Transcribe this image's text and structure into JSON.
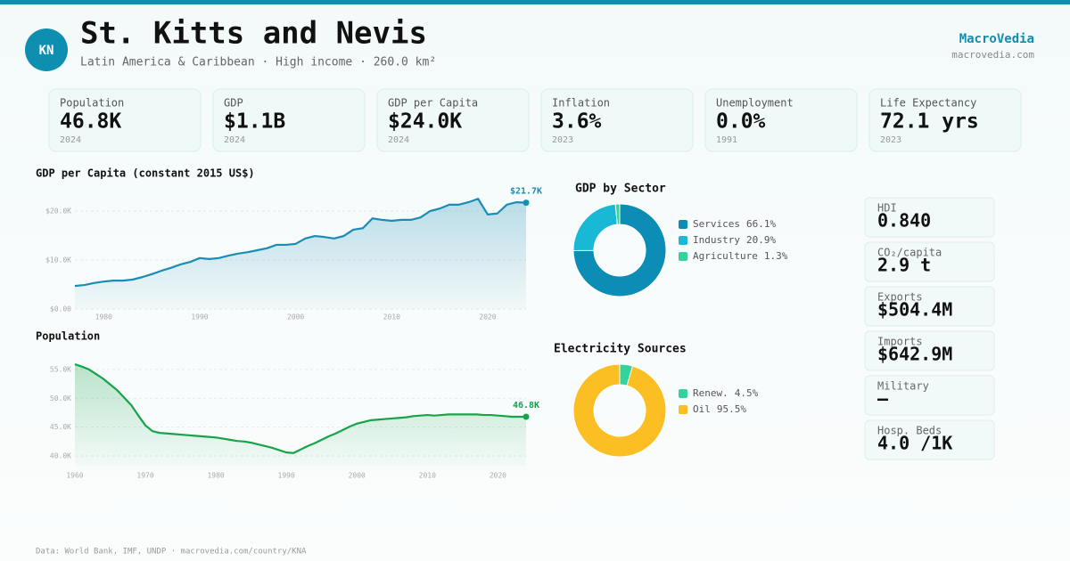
{
  "header": {
    "badge": "KN",
    "title": "St. Kitts and Nevis",
    "subtitle": "Latin America & Caribbean · High income · 260.0 km²",
    "brand": "MacroVedia",
    "site": "macrovedia.com"
  },
  "stats": [
    {
      "label": "Population",
      "value": "46.8K",
      "year": "2024"
    },
    {
      "label": "GDP",
      "value": "$1.1B",
      "year": "2024"
    },
    {
      "label": "GDP per Capita",
      "value": "$24.0K",
      "year": "2024"
    },
    {
      "label": "Inflation",
      "value": "3.6%",
      "year": "2023"
    },
    {
      "label": "Unemployment",
      "value": "0.0%",
      "year": "1991"
    },
    {
      "label": "Life Expectancy",
      "value": "72.1 yrs",
      "year": "2023"
    }
  ],
  "chart_data": [
    {
      "type": "line",
      "title": "GDP per Capita (constant 2015 US$)",
      "color": "#1a8db3",
      "x": [
        1977,
        1978,
        1979,
        1980,
        1981,
        1982,
        1983,
        1984,
        1985,
        1986,
        1987,
        1988,
        1989,
        1990,
        1991,
        1992,
        1993,
        1994,
        1995,
        1996,
        1997,
        1998,
        1999,
        2000,
        2001,
        2002,
        2003,
        2004,
        2005,
        2006,
        2007,
        2008,
        2009,
        2010,
        2011,
        2012,
        2013,
        2014,
        2015,
        2016,
        2017,
        2018,
        2019,
        2020,
        2021,
        2022,
        2023,
        2024
      ],
      "values": [
        4700,
        4900,
        5300,
        5600,
        5800,
        5800,
        6000,
        6500,
        7100,
        7800,
        8400,
        9100,
        9600,
        10400,
        10200,
        10400,
        10900,
        11300,
        11600,
        12000,
        12400,
        13100,
        13100,
        13300,
        14400,
        14900,
        14700,
        14400,
        14900,
        16200,
        16500,
        18500,
        18200,
        18000,
        18200,
        18200,
        18700,
        20000,
        20500,
        21300,
        21300,
        21800,
        22500,
        19300,
        19500,
        21300,
        21800,
        21700
      ],
      "value_labels": [
        null,
        null,
        null,
        null,
        null,
        null,
        null,
        null,
        null,
        null,
        null,
        null,
        null,
        null,
        null,
        null,
        null,
        null,
        null,
        null,
        null,
        null,
        null,
        null,
        null,
        null,
        null,
        null,
        null,
        null,
        null,
        null,
        null,
        null,
        null,
        null,
        null,
        null,
        null,
        null,
        null,
        null,
        null,
        null,
        null,
        null,
        null,
        "$21.7K"
      ],
      "xlim": [
        1977,
        2024
      ],
      "xticks": [
        1980,
        1990,
        2000,
        2010,
        2020
      ],
      "ylim": [
        0,
        25000
      ],
      "yticks": [
        {
          "value": 0,
          "label": "$0.00"
        },
        {
          "value": 10000,
          "label": "$10.0K"
        },
        {
          "value": 20000,
          "label": "$20.0K"
        }
      ],
      "grid": true
    },
    {
      "type": "line",
      "title": "Population",
      "color": "#16a34a",
      "x": [
        1960,
        1961,
        1962,
        1963,
        1964,
        1965,
        1966,
        1967,
        1968,
        1969,
        1970,
        1971,
        1972,
        1973,
        1974,
        1975,
        1976,
        1977,
        1978,
        1979,
        1980,
        1981,
        1982,
        1983,
        1984,
        1985,
        1986,
        1987,
        1988,
        1989,
        1990,
        1991,
        1992,
        1993,
        1994,
        1995,
        1996,
        1997,
        1998,
        1999,
        2000,
        2001,
        2002,
        2003,
        2004,
        2005,
        2006,
        2007,
        2008,
        2009,
        2010,
        2011,
        2012,
        2013,
        2014,
        2015,
        2016,
        2017,
        2018,
        2019,
        2020,
        2021,
        2022,
        2023,
        2024
      ],
      "values": [
        55900,
        55500,
        55000,
        54200,
        53400,
        52400,
        51400,
        50100,
        48800,
        47000,
        45300,
        44300,
        44000,
        43900,
        43800,
        43700,
        43600,
        43500,
        43400,
        43300,
        43200,
        43000,
        42800,
        42600,
        42500,
        42300,
        42000,
        41700,
        41400,
        41000,
        40600,
        40500,
        41100,
        41700,
        42200,
        42800,
        43400,
        43900,
        44500,
        45100,
        45600,
        45900,
        46200,
        46300,
        46400,
        46500,
        46600,
        46700,
        46900,
        47000,
        47100,
        47000,
        47100,
        47200,
        47200,
        47200,
        47200,
        47200,
        47100,
        47100,
        47000,
        46900,
        46800,
        46800,
        46800
      ],
      "value_labels": [
        null,
        null,
        null,
        null,
        null,
        null,
        null,
        null,
        null,
        null,
        null,
        null,
        null,
        null,
        null,
        null,
        null,
        null,
        null,
        null,
        null,
        null,
        null,
        null,
        null,
        null,
        null,
        null,
        null,
        null,
        null,
        null,
        null,
        null,
        null,
        null,
        null,
        null,
        null,
        null,
        null,
        null,
        null,
        null,
        null,
        null,
        null,
        null,
        null,
        null,
        null,
        null,
        null,
        null,
        null,
        null,
        null,
        null,
        null,
        null,
        null,
        null,
        null,
        null,
        "46.8K"
      ],
      "xlim": [
        1960,
        2024
      ],
      "xticks": [
        1960,
        1970,
        1980,
        1990,
        2000,
        2010,
        2020
      ],
      "ylim": [
        38300,
        56500
      ],
      "yticks": [
        {
          "value": 40000,
          "label": "40.0K"
        },
        {
          "value": 45000,
          "label": "45.0K"
        },
        {
          "value": 50000,
          "label": "50.0K"
        },
        {
          "value": 55000,
          "label": "55.0K"
        }
      ],
      "grid": true
    },
    {
      "type": "pie",
      "title": "GDP by Sector",
      "categories": [
        "Services",
        "Industry",
        "Agriculture"
      ],
      "values": [
        66.1,
        20.9,
        1.3
      ],
      "value_labels": [
        "66.1%",
        "20.9%",
        "1.3%"
      ],
      "colors": [
        "#0b8db5",
        "#19b9d6",
        "#34d39e"
      ]
    },
    {
      "type": "pie",
      "title": "Electricity Sources",
      "categories": [
        "Renew.",
        "Oil"
      ],
      "values": [
        4.5,
        95.5
      ],
      "value_labels": [
        "4.5%",
        "95.5%"
      ],
      "colors": [
        "#34d39e",
        "#fbbf24"
      ]
    }
  ],
  "side_stats": [
    {
      "label": "HDI",
      "value": "0.840"
    },
    {
      "label": "CO₂/capita",
      "value": "2.9 t"
    },
    {
      "label": "Exports",
      "value": "$504.4M"
    },
    {
      "label": "Imports",
      "value": "$642.9M"
    },
    {
      "label": "Military",
      "value": "—"
    },
    {
      "label": "Hosp. Beds",
      "value": "4.0 /1K"
    }
  ],
  "footer": "Data: World Bank, IMF, UNDP · macrovedia.com/country/KNA"
}
